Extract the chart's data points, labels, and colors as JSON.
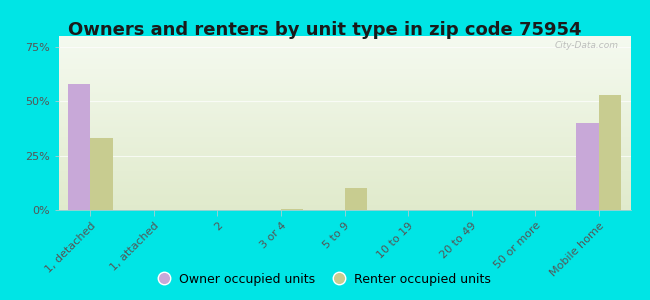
{
  "title": "Owners and renters by unit type in zip code 75954",
  "categories": [
    "1, detached",
    "1, attached",
    "2",
    "3 or 4",
    "5 to 9",
    "10 to 19",
    "20 to 49",
    "50 or more",
    "Mobile home"
  ],
  "owner_values": [
    58,
    0,
    0,
    0,
    0,
    0,
    0,
    0,
    40
  ],
  "renter_values": [
    33,
    0,
    0,
    0.5,
    10,
    0,
    0,
    0,
    53
  ],
  "owner_color": "#c8a8d8",
  "renter_color": "#c8cc90",
  "background_color": "#00e5e5",
  "yticks": [
    0,
    25,
    50,
    75
  ],
  "ylim": [
    0,
    80
  ],
  "bar_width": 0.35,
  "title_fontsize": 13,
  "tick_fontsize": 8,
  "legend_fontsize": 9,
  "watermark": "City-Data.com"
}
